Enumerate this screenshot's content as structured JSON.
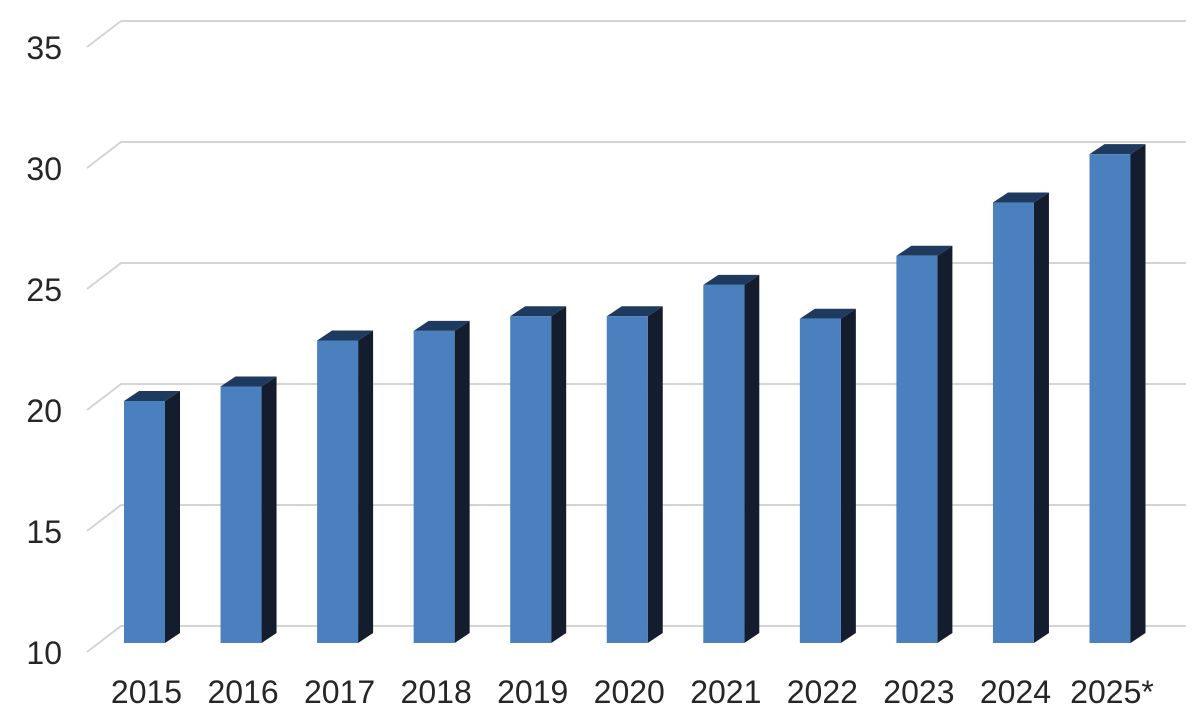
{
  "chart_data": {
    "type": "bar",
    "style": "3d-column",
    "title": "",
    "xlabel": "",
    "ylabel": "",
    "categories": [
      "2015",
      "2016",
      "2017",
      "2018",
      "2019",
      "2020",
      "2021",
      "2022",
      "2023",
      "2024",
      "2025*"
    ],
    "values": [
      20.0,
      20.6,
      22.5,
      22.9,
      23.5,
      23.5,
      24.8,
      23.4,
      26.0,
      28.2,
      30.2
    ],
    "ylim": [
      10,
      35
    ],
    "yticks": [
      10,
      15,
      20,
      25,
      30,
      35
    ],
    "grid": true,
    "legend_position": "none",
    "colors": {
      "bar_front": "#4a80be",
      "bar_top": "#1f3a5f",
      "bar_side": "#141d2d",
      "gridline": "#d4d4d4",
      "tick_text": "#262626",
      "background": "#ffffff"
    }
  }
}
